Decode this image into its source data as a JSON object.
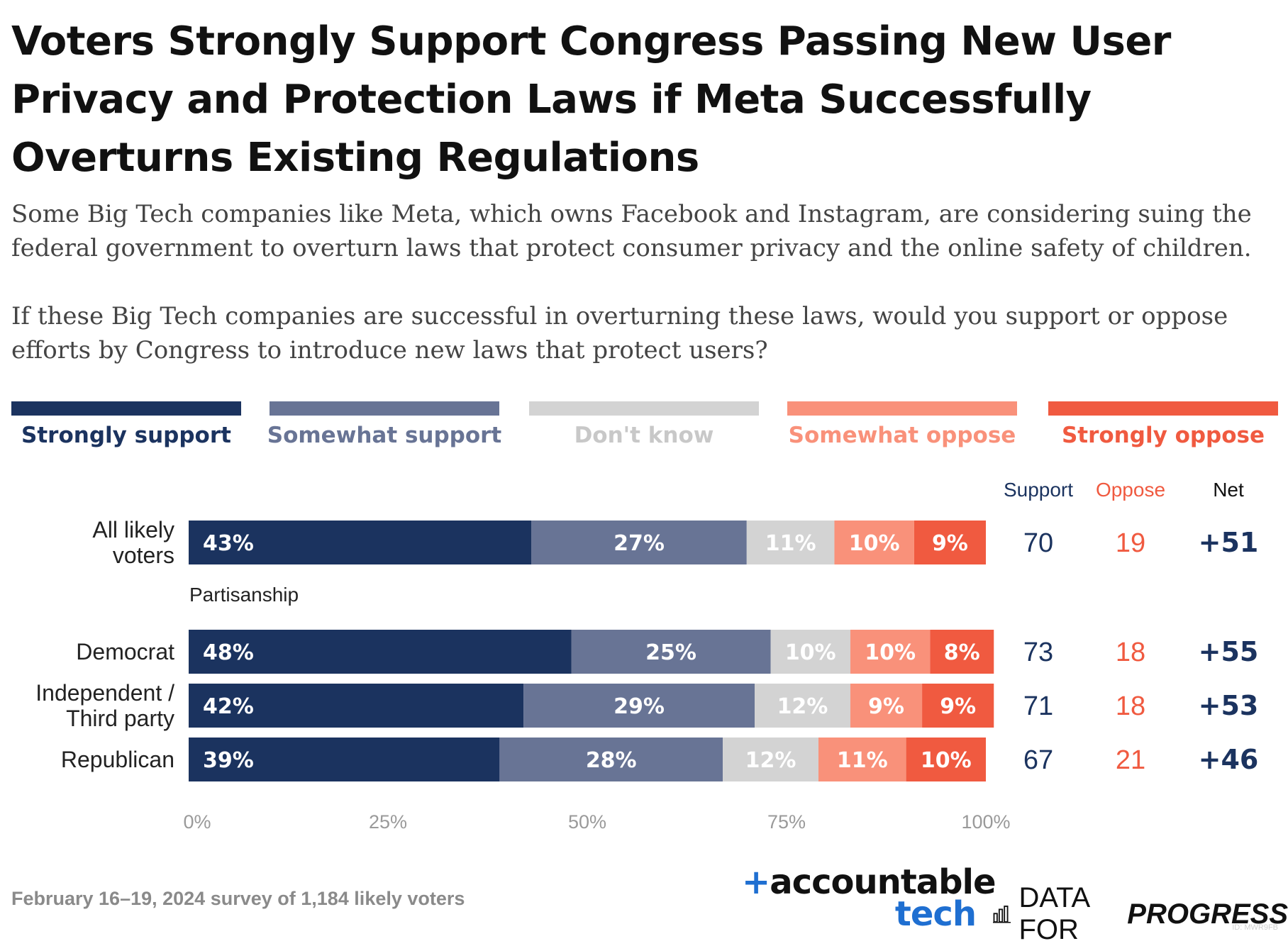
{
  "title": "Voters Strongly Support Congress Passing New User Privacy and Protection Laws if Meta Successfully Overturns Existing Regulations",
  "subtitle_1": "Some Big Tech companies like Meta, which owns Facebook and Instagram, are considering suing the federal government to overturn laws that protect consumer privacy and the online safety of children.",
  "subtitle_2": "If these Big Tech companies are successful in overturning these laws, would you support or oppose efforts by Congress to introduce new laws that protect users?",
  "footer_note": "February 16–19, 2024 survey of 1,184 likely voters",
  "logo_accountable_line1": "accountable",
  "logo_accountable_plus": "+",
  "logo_accountable_line2": "tech",
  "logo_dfp_part1": "DATA FOR",
  "logo_dfp_part2": "PROGRESS",
  "watermark": "ID: MWR9FB",
  "colors": {
    "strongly_support": "#1b335f",
    "somewhat_support": "#687495",
    "dont_know": "#d3d3d3",
    "somewhat_oppose": "#f9917a",
    "strongly_oppose": "#f05a40",
    "axis_text": "#9a9a9a"
  },
  "chart_data": {
    "type": "bar",
    "orientation": "horizontal-stacked-100",
    "legend_position": "top",
    "xlim": [
      0,
      100
    ],
    "x_ticks": [
      "0%",
      "25%",
      "50%",
      "75%",
      "100%"
    ],
    "series": [
      {
        "name": "Strongly support",
        "color": "#1b335f",
        "values": [
          43,
          48,
          42,
          39
        ]
      },
      {
        "name": "Somewhat support",
        "color": "#687495",
        "values": [
          27,
          25,
          29,
          28
        ]
      },
      {
        "name": "Don't know",
        "color": "#d3d3d3",
        "values": [
          11,
          10,
          12,
          12
        ]
      },
      {
        "name": "Somewhat oppose",
        "color": "#f9917a",
        "values": [
          10,
          10,
          9,
          11
        ]
      },
      {
        "name": "Strongly oppose",
        "color": "#f05a40",
        "values": [
          9,
          8,
          9,
          10
        ]
      }
    ],
    "rows": [
      {
        "label_lines": [
          "All likely",
          "voters"
        ],
        "group": null,
        "support": "70",
        "oppose": "19",
        "net": "+51"
      },
      {
        "label_lines": [
          "Democrat"
        ],
        "group": "Partisanship",
        "support": "73",
        "oppose": "18",
        "net": "+55"
      },
      {
        "label_lines": [
          "Independent /",
          "Third party"
        ],
        "group": null,
        "support": "71",
        "oppose": "18",
        "net": "+53"
      },
      {
        "label_lines": [
          "Republican"
        ],
        "group": null,
        "support": "67",
        "oppose": "21",
        "net": "+46"
      }
    ],
    "summary_headers": {
      "support": "Support",
      "oppose": "Oppose",
      "net": "Net"
    }
  }
}
